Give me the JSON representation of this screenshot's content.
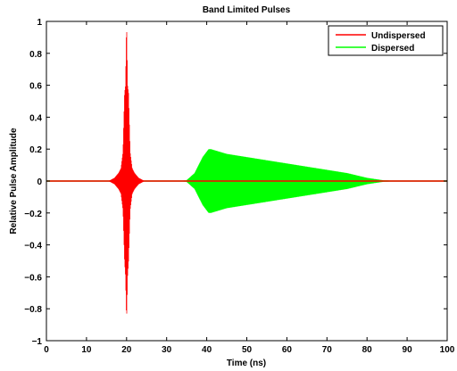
{
  "chart_data": {
    "type": "line",
    "title": "Band Limited Pulses",
    "xlabel": "Time (ns)",
    "ylabel": "Relative Pulse Amplitude",
    "xlim": [
      0,
      100
    ],
    "ylim": [
      -1,
      1
    ],
    "xticks": [
      0,
      10,
      20,
      30,
      40,
      50,
      60,
      70,
      80,
      90,
      100
    ],
    "yticks": [
      -1,
      -0.8,
      -0.6,
      -0.4,
      -0.2,
      0,
      0.2,
      0.4,
      0.6,
      0.8,
      1
    ],
    "ytick_labels": [
      "−1",
      "−0.8",
      "−0.6",
      "−0.4",
      "−0.2",
      "0",
      "0.2",
      "0.4",
      "0.6",
      "0.8",
      "1"
    ],
    "grid": false,
    "legend_position": "top-right",
    "series": [
      {
        "name": "Undispersed",
        "color": "#ff0000",
        "envelope_x": [
          15.5,
          17,
          18,
          18.6,
          19.1,
          19.5,
          19.75,
          19.9,
          20,
          20.1,
          20.25,
          20.5,
          20.9,
          21.4,
          22,
          23,
          24.5
        ],
        "envelope_upper": [
          0,
          0.02,
          0.05,
          0.08,
          0.18,
          0.55,
          0.6,
          0.85,
          1.0,
          0.85,
          0.6,
          0.55,
          0.18,
          0.08,
          0.05,
          0.02,
          0
        ],
        "envelope_lower": [
          0,
          -0.02,
          -0.05,
          -0.08,
          -0.18,
          -0.5,
          -0.6,
          -0.78,
          -0.87,
          -0.78,
          -0.6,
          -0.5,
          -0.18,
          -0.08,
          -0.05,
          -0.02,
          0
        ]
      },
      {
        "name": "Dispersed",
        "color": "#00ff00",
        "envelope_x": [
          33,
          35,
          37,
          39,
          40.5,
          41,
          45,
          50,
          55,
          60,
          65,
          70,
          75,
          80,
          84,
          88
        ],
        "envelope_upper": [
          0,
          0.005,
          0.05,
          0.15,
          0.2,
          0.2,
          0.17,
          0.15,
          0.13,
          0.11,
          0.09,
          0.07,
          0.05,
          0.02,
          0.005,
          0
        ],
        "envelope_lower": [
          0,
          -0.005,
          -0.05,
          -0.15,
          -0.2,
          -0.2,
          -0.17,
          -0.15,
          -0.13,
          -0.11,
          -0.09,
          -0.07,
          -0.05,
          -0.02,
          -0.005,
          0
        ]
      }
    ]
  }
}
